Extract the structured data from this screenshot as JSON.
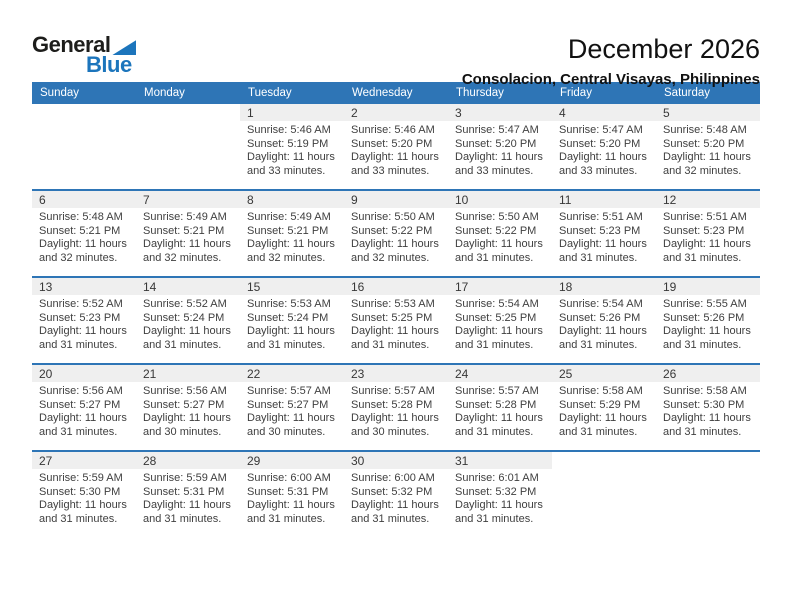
{
  "logo": {
    "line1": "General",
    "line2": "Blue"
  },
  "header": {
    "title": "December 2026",
    "subtitle": "Consolacion, Central Visayas, Philippines"
  },
  "colors": {
    "header_bg": "#2e75b6",
    "day_band_bg": "#efefef",
    "week_divider": "#2e75b6",
    "logo_blue": "#1c75bc",
    "header_text": "#ffffff",
    "body_text": "#3f3f3f"
  },
  "weekdays": [
    "Sunday",
    "Monday",
    "Tuesday",
    "Wednesday",
    "Thursday",
    "Friday",
    "Saturday"
  ],
  "weeks": [
    [
      null,
      null,
      {
        "day": "1",
        "sunrise": "Sunrise: 5:46 AM",
        "sunset": "Sunset: 5:19 PM",
        "daylight": "Daylight: 11 hours and 33 minutes."
      },
      {
        "day": "2",
        "sunrise": "Sunrise: 5:46 AM",
        "sunset": "Sunset: 5:20 PM",
        "daylight": "Daylight: 11 hours and 33 minutes."
      },
      {
        "day": "3",
        "sunrise": "Sunrise: 5:47 AM",
        "sunset": "Sunset: 5:20 PM",
        "daylight": "Daylight: 11 hours and 33 minutes."
      },
      {
        "day": "4",
        "sunrise": "Sunrise: 5:47 AM",
        "sunset": "Sunset: 5:20 PM",
        "daylight": "Daylight: 11 hours and 33 minutes."
      },
      {
        "day": "5",
        "sunrise": "Sunrise: 5:48 AM",
        "sunset": "Sunset: 5:20 PM",
        "daylight": "Daylight: 11 hours and 32 minutes."
      }
    ],
    [
      {
        "day": "6",
        "sunrise": "Sunrise: 5:48 AM",
        "sunset": "Sunset: 5:21 PM",
        "daylight": "Daylight: 11 hours and 32 minutes."
      },
      {
        "day": "7",
        "sunrise": "Sunrise: 5:49 AM",
        "sunset": "Sunset: 5:21 PM",
        "daylight": "Daylight: 11 hours and 32 minutes."
      },
      {
        "day": "8",
        "sunrise": "Sunrise: 5:49 AM",
        "sunset": "Sunset: 5:21 PM",
        "daylight": "Daylight: 11 hours and 32 minutes."
      },
      {
        "day": "9",
        "sunrise": "Sunrise: 5:50 AM",
        "sunset": "Sunset: 5:22 PM",
        "daylight": "Daylight: 11 hours and 32 minutes."
      },
      {
        "day": "10",
        "sunrise": "Sunrise: 5:50 AM",
        "sunset": "Sunset: 5:22 PM",
        "daylight": "Daylight: 11 hours and 31 minutes."
      },
      {
        "day": "11",
        "sunrise": "Sunrise: 5:51 AM",
        "sunset": "Sunset: 5:23 PM",
        "daylight": "Daylight: 11 hours and 31 minutes."
      },
      {
        "day": "12",
        "sunrise": "Sunrise: 5:51 AM",
        "sunset": "Sunset: 5:23 PM",
        "daylight": "Daylight: 11 hours and 31 minutes."
      }
    ],
    [
      {
        "day": "13",
        "sunrise": "Sunrise: 5:52 AM",
        "sunset": "Sunset: 5:23 PM",
        "daylight": "Daylight: 11 hours and 31 minutes."
      },
      {
        "day": "14",
        "sunrise": "Sunrise: 5:52 AM",
        "sunset": "Sunset: 5:24 PM",
        "daylight": "Daylight: 11 hours and 31 minutes."
      },
      {
        "day": "15",
        "sunrise": "Sunrise: 5:53 AM",
        "sunset": "Sunset: 5:24 PM",
        "daylight": "Daylight: 11 hours and 31 minutes."
      },
      {
        "day": "16",
        "sunrise": "Sunrise: 5:53 AM",
        "sunset": "Sunset: 5:25 PM",
        "daylight": "Daylight: 11 hours and 31 minutes."
      },
      {
        "day": "17",
        "sunrise": "Sunrise: 5:54 AM",
        "sunset": "Sunset: 5:25 PM",
        "daylight": "Daylight: 11 hours and 31 minutes."
      },
      {
        "day": "18",
        "sunrise": "Sunrise: 5:54 AM",
        "sunset": "Sunset: 5:26 PM",
        "daylight": "Daylight: 11 hours and 31 minutes."
      },
      {
        "day": "19",
        "sunrise": "Sunrise: 5:55 AM",
        "sunset": "Sunset: 5:26 PM",
        "daylight": "Daylight: 11 hours and 31 minutes."
      }
    ],
    [
      {
        "day": "20",
        "sunrise": "Sunrise: 5:56 AM",
        "sunset": "Sunset: 5:27 PM",
        "daylight": "Daylight: 11 hours and 31 minutes."
      },
      {
        "day": "21",
        "sunrise": "Sunrise: 5:56 AM",
        "sunset": "Sunset: 5:27 PM",
        "daylight": "Daylight: 11 hours and 30 minutes."
      },
      {
        "day": "22",
        "sunrise": "Sunrise: 5:57 AM",
        "sunset": "Sunset: 5:27 PM",
        "daylight": "Daylight: 11 hours and 30 minutes."
      },
      {
        "day": "23",
        "sunrise": "Sunrise: 5:57 AM",
        "sunset": "Sunset: 5:28 PM",
        "daylight": "Daylight: 11 hours and 30 minutes."
      },
      {
        "day": "24",
        "sunrise": "Sunrise: 5:57 AM",
        "sunset": "Sunset: 5:28 PM",
        "daylight": "Daylight: 11 hours and 31 minutes."
      },
      {
        "day": "25",
        "sunrise": "Sunrise: 5:58 AM",
        "sunset": "Sunset: 5:29 PM",
        "daylight": "Daylight: 11 hours and 31 minutes."
      },
      {
        "day": "26",
        "sunrise": "Sunrise: 5:58 AM",
        "sunset": "Sunset: 5:30 PM",
        "daylight": "Daylight: 11 hours and 31 minutes."
      }
    ],
    [
      {
        "day": "27",
        "sunrise": "Sunrise: 5:59 AM",
        "sunset": "Sunset: 5:30 PM",
        "daylight": "Daylight: 11 hours and 31 minutes."
      },
      {
        "day": "28",
        "sunrise": "Sunrise: 5:59 AM",
        "sunset": "Sunset: 5:31 PM",
        "daylight": "Daylight: 11 hours and 31 minutes."
      },
      {
        "day": "29",
        "sunrise": "Sunrise: 6:00 AM",
        "sunset": "Sunset: 5:31 PM",
        "daylight": "Daylight: 11 hours and 31 minutes."
      },
      {
        "day": "30",
        "sunrise": "Sunrise: 6:00 AM",
        "sunset": "Sunset: 5:32 PM",
        "daylight": "Daylight: 11 hours and 31 minutes."
      },
      {
        "day": "31",
        "sunrise": "Sunrise: 6:01 AM",
        "sunset": "Sunset: 5:32 PM",
        "daylight": "Daylight: 11 hours and 31 minutes."
      },
      null,
      null
    ]
  ]
}
